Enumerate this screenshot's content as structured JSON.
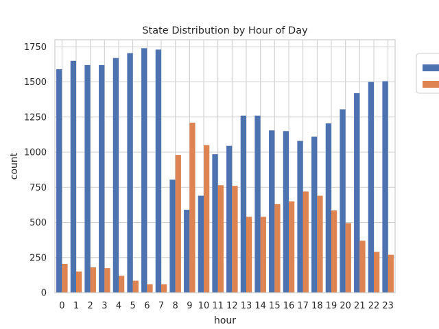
{
  "chart_data": {
    "type": "bar",
    "title": "State Distribution by Hour of Day",
    "xlabel": "hour",
    "ylabel": "count",
    "ylim": [
      0,
      1800
    ],
    "yticks": [
      0,
      250,
      500,
      750,
      1000,
      1250,
      1500,
      1750
    ],
    "grid": true,
    "legend_position": "outside top-right",
    "categories": [
      "0",
      "1",
      "2",
      "3",
      "4",
      "5",
      "6",
      "7",
      "8",
      "9",
      "10",
      "11",
      "12",
      "13",
      "14",
      "15",
      "16",
      "17",
      "18",
      "19",
      "20",
      "21",
      "22",
      "23"
    ],
    "series": [
      {
        "color": "#4c72b0",
        "values": [
          1590,
          1650,
          1620,
          1620,
          1670,
          1705,
          1740,
          1730,
          805,
          590,
          690,
          985,
          1045,
          1260,
          1260,
          1155,
          1150,
          1080,
          1110,
          1205,
          1305,
          1420,
          1500,
          1505
        ]
      },
      {
        "color": "#dd8452",
        "values": [
          205,
          150,
          180,
          175,
          120,
          85,
          60,
          60,
          980,
          1210,
          1050,
          765,
          760,
          540,
          540,
          630,
          650,
          720,
          690,
          585,
          495,
          370,
          290,
          270
        ]
      }
    ]
  }
}
